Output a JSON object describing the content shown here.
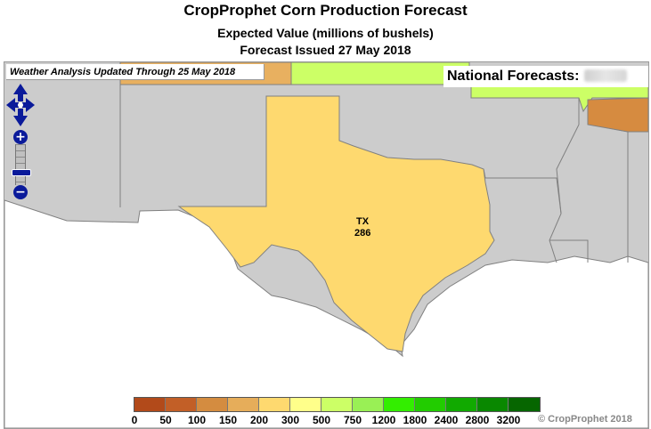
{
  "header": {
    "title": "CropProphet Corn Production Forecast",
    "subtitle": "Expected Value (millions of bushels)",
    "issued": "Forecast Issued 27 May 2018"
  },
  "map": {
    "weather_banner": "Weather Analysis Updated Through 25 May 2018",
    "national_label": "National Forecasts:",
    "states": [
      {
        "abbr": "TX",
        "value": "286",
        "fill": "#fed96f"
      }
    ],
    "colors": {
      "no_data": "#cccccc",
      "border": "#808080",
      "water": "#ffffff",
      "texas": "#fed96f",
      "green_region": "#ccff66",
      "orange_region": "#e8b060",
      "brown_region": "#d68b40"
    }
  },
  "controls": {
    "zoom_in": "+",
    "zoom_out": "−"
  },
  "legend": {
    "ticks": [
      "0",
      "50",
      "100",
      "150",
      "200",
      "300",
      "500",
      "750",
      "1200",
      "1800",
      "2400",
      "2800",
      "3200"
    ],
    "colors": [
      "#b24a1a",
      "#c25f27",
      "#d48c40",
      "#e6ad5a",
      "#fed96f",
      "#ffff8a",
      "#ccff66",
      "#99f055",
      "#33ee00",
      "#22cc00",
      "#11aa00",
      "#098800",
      "#066600"
    ]
  },
  "footer": {
    "copyright": "© CropProphet 2018"
  }
}
